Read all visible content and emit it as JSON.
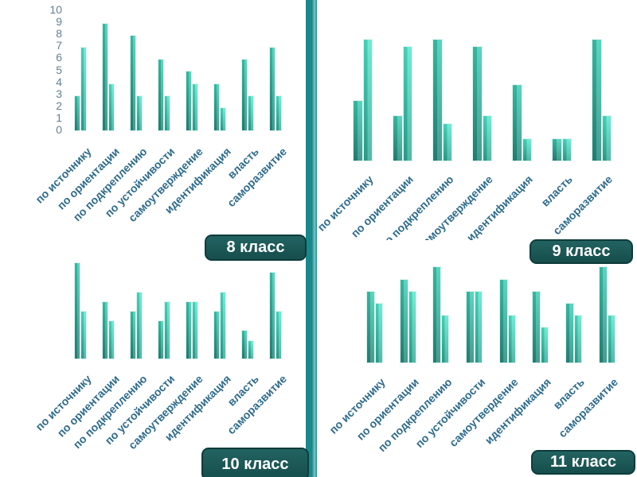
{
  "slide": {
    "description": "Four bar charts comparing motivation categories by school class"
  },
  "colors": {
    "background": "#ffffff",
    "bar-s1-top": "#3fcdb4",
    "bar-s1-bottom": "#27897c",
    "bar-s2-top": "#52e6cb",
    "bar-s2-bottom": "#2fa895",
    "bar-border": "#dcf5f0",
    "category-label": "#2d6b8d",
    "tick-label": "#64808f",
    "divider": "#19888b",
    "divider-edge": "#79c6c8",
    "badge-bg-top": "#226361",
    "badge-bg-bottom": "#164e4c",
    "badge-border": "#0e3c3b",
    "badge-text": "#ffffff"
  },
  "badges": [
    {
      "label": "8 класс"
    },
    {
      "label": "9 класс"
    },
    {
      "label": "10 класс"
    },
    {
      "label": "11 класс"
    }
  ],
  "chart_data": [
    {
      "id": "chart-8-klass",
      "type": "bar",
      "title": "8 класс",
      "categories": [
        "по источнику",
        "по ориентации",
        "по подкреплению",
        "по устойчивости",
        "самоутверждение",
        "идентификация",
        "власть",
        "саморазвитие"
      ],
      "series": [
        {
          "id": "series-1",
          "values": [
            3,
            9,
            8,
            6,
            5,
            4,
            6,
            7
          ]
        },
        {
          "id": "series-2",
          "values": [
            7,
            4,
            3,
            3,
            4,
            2,
            3,
            3
          ]
        }
      ],
      "ylim": [
        0,
        10
      ],
      "y_ticks": [
        "0",
        "1",
        "2",
        "3",
        "4",
        "5",
        "6",
        "7",
        "8",
        "9",
        "10"
      ],
      "y_axis_visible": true,
      "grid": false,
      "legend": "none"
    },
    {
      "id": "chart-9-klass",
      "type": "bar",
      "title": "9 класс",
      "categories": [
        "по источнику",
        "по ориентации",
        "по подкреплению",
        "самоутверждение",
        "идентификация",
        "власть",
        "саморазвитие"
      ],
      "series": [
        {
          "id": "series-1",
          "values": [
            4,
            3,
            8,
            7.5,
            5,
            1.5,
            8
          ]
        },
        {
          "id": "series-2",
          "values": [
            8,
            7.5,
            2.5,
            3,
            1.5,
            1.5,
            3
          ]
        }
      ],
      "ylim": [
        0,
        10
      ],
      "y_axis_visible": false,
      "grid": false,
      "legend": "none"
    },
    {
      "id": "chart-10-klass",
      "type": "bar",
      "title": "10 класс",
      "categories": [
        "по источнику",
        "по ориентации",
        "по подкреплению",
        "по устойчивости",
        "самоутверждение",
        "идентификация",
        "власть",
        "саморазвитие"
      ],
      "series": [
        {
          "id": "series-1",
          "values": [
            10,
            6,
            5,
            4,
            6,
            5,
            3,
            9
          ]
        },
        {
          "id": "series-2",
          "values": [
            5,
            4,
            7,
            6,
            6,
            7,
            2,
            5
          ]
        }
      ],
      "ylim": [
        0,
        10
      ],
      "y_axis_visible": false,
      "grid": false,
      "legend": "none"
    },
    {
      "id": "chart-11-klass",
      "type": "bar",
      "title": "11 класс",
      "categories": [
        "по источнику",
        "по ориентации",
        "по подкреплению",
        "по устойчивости",
        "самоутвердение",
        "идентификация",
        "власть",
        "саморазвитие"
      ],
      "series": [
        {
          "id": "series-1",
          "values": [
            6,
            7,
            8,
            6,
            7,
            6,
            5,
            8
          ]
        },
        {
          "id": "series-2",
          "values": [
            5,
            6,
            4,
            6,
            4,
            3,
            4,
            4
          ]
        }
      ],
      "ylim": [
        0,
        10
      ],
      "y_axis_visible": false,
      "grid": false,
      "legend": "none"
    }
  ]
}
